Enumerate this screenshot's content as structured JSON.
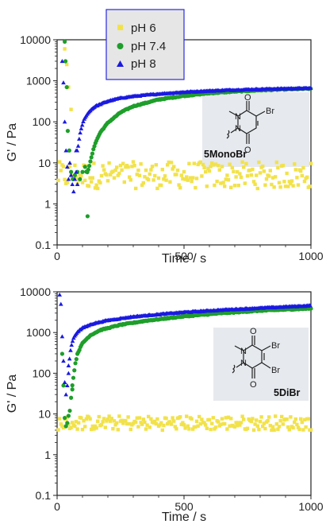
{
  "legend": {
    "position": "top-center",
    "entries": [
      {
        "label": "pH 6",
        "marker": "square",
        "color": "#f2e24a"
      },
      {
        "label": "pH 7.4",
        "marker": "circle",
        "color": "#1e9e2a"
      },
      {
        "label": "pH 8",
        "marker": "triangle",
        "color": "#1a1ae0"
      }
    ],
    "background": "#e6e6e6",
    "border_color": "#2a2ae0"
  },
  "chart_data": [
    {
      "type": "scatter",
      "xlabel": "Time / s",
      "ylabel": "G' / Pa",
      "xlim": [
        0,
        1000
      ],
      "ylim": [
        0.1,
        10000
      ],
      "yscale": "log",
      "xticks": [
        "0",
        "500",
        "1000"
      ],
      "yticks": [
        "0.1",
        "1",
        "10",
        "100",
        "1000",
        "10000"
      ],
      "grid": false,
      "inset": {
        "compound_label": "5MonoBr",
        "substituents": [
          "Br"
        ],
        "atoms": [
          "O",
          "N",
          "N",
          "O"
        ],
        "background": "#e6e9ee"
      },
      "series": [
        {
          "name": "pH 6",
          "color": "#f2e24a",
          "marker": "square",
          "description": "noisy baseline around 3-8 Pa across full time range",
          "early_points": [
            [
              30,
              6000
            ],
            [
              38,
              2500
            ],
            [
              45,
              700
            ],
            [
              55,
              200
            ]
          ],
          "baseline": {
            "x_start": 0,
            "x_end": 1000,
            "center": 5,
            "low": 2,
            "high": 9
          }
        },
        {
          "name": "pH 7.4",
          "color": "#1e9e2a",
          "marker": "circle",
          "early_points": [
            [
              30,
              9000
            ],
            [
              33,
              3000
            ],
            [
              38,
              700
            ],
            [
              42,
              60
            ],
            [
              48,
              20
            ],
            [
              55,
              6
            ],
            [
              62,
              4
            ],
            [
              70,
              5
            ],
            [
              80,
              6
            ],
            [
              90,
              4
            ],
            [
              100,
              6
            ],
            [
              110,
              8
            ],
            [
              120,
              0.5
            ]
          ],
          "curve": {
            "onset": 115,
            "points": [
              [
                120,
                6
              ],
              [
                130,
                10
              ],
              [
                140,
                18
              ],
              [
                150,
                30
              ],
              [
                170,
                55
              ],
              [
                200,
                95
              ],
              [
                250,
                170
              ],
              [
                300,
                240
              ],
              [
                400,
                350
              ],
              [
                500,
                430
              ],
              [
                600,
                500
              ],
              [
                700,
                550
              ],
              [
                800,
                590
              ],
              [
                900,
                620
              ],
              [
                1000,
                645
              ]
            ]
          }
        },
        {
          "name": "pH 8",
          "color": "#1a1ae0",
          "marker": "triangle",
          "early_points": [
            [
              20,
              3000
            ],
            [
              25,
              900
            ],
            [
              30,
              100
            ],
            [
              35,
              20
            ],
            [
              40,
              8
            ],
            [
              45,
              4
            ],
            [
              50,
              10
            ],
            [
              55,
              5
            ],
            [
              60,
              3
            ],
            [
              65,
              2
            ],
            [
              70,
              4
            ],
            [
              75,
              6
            ],
            [
              80,
              3
            ]
          ],
          "curve": {
            "onset": 75,
            "points": [
              [
                80,
                20
              ],
              [
                90,
                50
              ],
              [
                100,
                90
              ],
              [
                110,
                130
              ],
              [
                130,
                190
              ],
              [
                150,
                240
              ],
              [
                200,
                320
              ],
              [
                250,
                380
              ],
              [
                300,
                420
              ],
              [
                400,
                480
              ],
              [
                500,
                530
              ],
              [
                600,
                570
              ],
              [
                700,
                600
              ],
              [
                800,
                625
              ],
              [
                900,
                645
              ],
              [
                1000,
                660
              ]
            ]
          }
        }
      ]
    },
    {
      "type": "scatter",
      "xlabel": "Time / s",
      "ylabel": "G' / Pa",
      "xlim": [
        0,
        1000
      ],
      "ylim": [
        0.1,
        10000
      ],
      "yscale": "log",
      "xticks": [
        "0",
        "500",
        "1000"
      ],
      "yticks": [
        "0.1",
        "1",
        "10",
        "100",
        "1000",
        "10000"
      ],
      "grid": false,
      "inset": {
        "compound_label": "5DiBr",
        "substituents": [
          "Br",
          "Br"
        ],
        "atoms": [
          "O",
          "N",
          "N",
          "O"
        ],
        "background": "#e6e9ee"
      },
      "series": [
        {
          "name": "pH 6",
          "color": "#f2e24a",
          "marker": "square",
          "baseline": {
            "x_start": 0,
            "x_end": 1000,
            "center": 6,
            "low": 4,
            "high": 9
          }
        },
        {
          "name": "pH 7.4",
          "color": "#1e9e2a",
          "marker": "circle",
          "early_points": [
            [
              20,
              300
            ],
            [
              25,
              50
            ],
            [
              30,
              8
            ],
            [
              35,
              5
            ],
            [
              40,
              6
            ],
            [
              45,
              9
            ],
            [
              50,
              12
            ],
            [
              55,
              25
            ],
            [
              60,
              40
            ]
          ],
          "curve": {
            "onset": 60,
            "points": [
              [
                60,
                50
              ],
              [
                70,
                150
              ],
              [
                80,
                300
              ],
              [
                100,
                550
              ],
              [
                130,
                850
              ],
              [
                170,
                1150
              ],
              [
                250,
                1550
              ],
              [
                350,
                1950
              ],
              [
                500,
                2500
              ],
              [
                650,
                3000
              ],
              [
                800,
                3450
              ],
              [
                1000,
                3900
              ]
            ]
          }
        },
        {
          "name": "pH 8",
          "color": "#1a1ae0",
          "marker": "triangle",
          "early_points": [
            [
              10,
              8500
            ],
            [
              15,
              5000
            ],
            [
              20,
              800
            ],
            [
              25,
              200
            ],
            [
              30,
              60
            ],
            [
              35,
              30
            ],
            [
              40,
              50
            ],
            [
              45,
              100
            ]
          ],
          "curve": {
            "onset": 45,
            "points": [
              [
                45,
                150
              ],
              [
                55,
                450
              ],
              [
                65,
                750
              ],
              [
                80,
                1050
              ],
              [
                100,
                1300
              ],
              [
                140,
                1650
              ],
              [
                200,
                2000
              ],
              [
                300,
                2450
              ],
              [
                400,
                2800
              ],
              [
                500,
                3150
              ],
              [
                650,
                3600
              ],
              [
                800,
                4000
              ],
              [
                1000,
                4600
              ]
            ]
          }
        }
      ]
    }
  ]
}
